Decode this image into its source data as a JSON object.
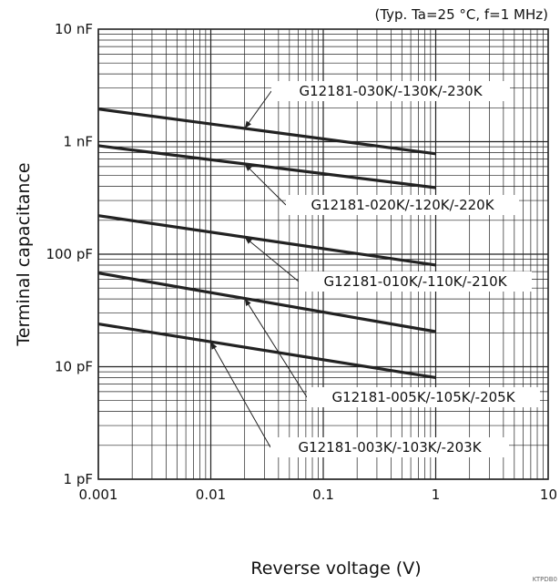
{
  "chart_data": {
    "type": "line",
    "title": "",
    "subtitle": "(Typ. Ta=25 °C, f=1 MHz)",
    "xlabel": "Reverse voltage (V)",
    "ylabel": "Terminal capacitance",
    "xscale": "log",
    "yscale": "log",
    "xlim": [
      0.001,
      10
    ],
    "ylim": [
      1,
      10000
    ],
    "grid": true,
    "x_ticks": [
      "0.001",
      "0.01",
      "0.1",
      "1",
      "10"
    ],
    "y_ticks": [
      "1 pF",
      "10 pF",
      "100 pF",
      "1 nF",
      "10 nF"
    ],
    "units": {
      "x": "V",
      "y": "pF"
    },
    "series": [
      {
        "name": "G12181-030K/-130K/-230K",
        "x": [
          0.001,
          1
        ],
        "y": [
          1950,
          780
        ],
        "label_at": 0.02
      },
      {
        "name": "G12181-020K/-120K/-220K",
        "x": [
          0.001,
          1
        ],
        "y": [
          920,
          390
        ],
        "label_at": 0.02
      },
      {
        "name": "G12181-010K/-110K/-210K",
        "x": [
          0.001,
          1
        ],
        "y": [
          220,
          80
        ],
        "label_at": 0.02
      },
      {
        "name": "G12181-005K/-105K/-205K",
        "x": [
          0.001,
          1
        ],
        "y": [
          68,
          20.5
        ],
        "label_at": 0.02
      },
      {
        "name": "G12181-003K/-103K/-203K",
        "x": [
          0.001,
          1
        ],
        "y": [
          24,
          8
        ],
        "label_at": 0.01
      }
    ],
    "labels": [
      {
        "text": "G12181-030K/-130K/-230K"
      },
      {
        "text": "G12181-020K/-120K/-220K"
      },
      {
        "text": "G12181-010K/-110K/-210K"
      },
      {
        "text": "G12181-005K/-105K/-205K"
      },
      {
        "text": "G12181-003K/-103K/-203K"
      }
    ],
    "figure_code": "KTPDB0",
    "colors": {
      "line": "#222222",
      "grid": "#222222",
      "background": "#ffffff"
    }
  }
}
